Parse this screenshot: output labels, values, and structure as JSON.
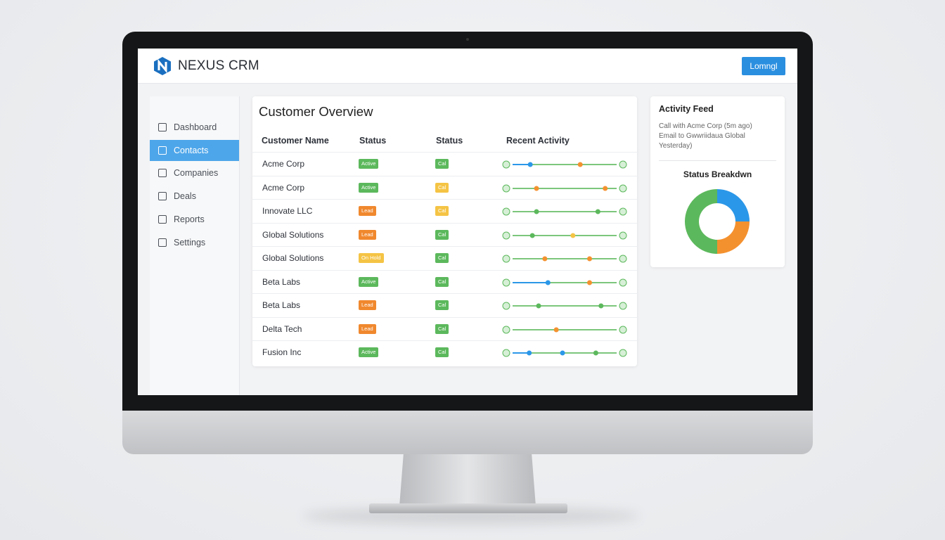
{
  "header": {
    "brand": "NEXUS CRM",
    "button": "Lomngl"
  },
  "sidebar": {
    "items": [
      "Dashboard",
      "Contacts",
      "Companies",
      "Deals",
      "Reports",
      "Settings"
    ],
    "active": 1
  },
  "customers": {
    "title": "Customer Overview",
    "headers": [
      "Customer Name",
      "Status",
      "Status",
      "Recent Activity"
    ],
    "rows": [
      {
        "name": "Acme Corp",
        "status": "Active",
        "status_color": "#5cb85c",
        "status2": "Cal",
        "status2_color": "#5cb85c"
      },
      {
        "name": "Acme Corp",
        "status": "Active",
        "status_color": "#5cb85c",
        "status2": "Cal",
        "status2_color": "#f5c445"
      },
      {
        "name": "Innovate LLC",
        "status": "Lead",
        "status_color": "#f0882e",
        "status2": "Cal",
        "status2_color": "#f5c445"
      },
      {
        "name": "Global Solutions",
        "status": "Lead",
        "status_color": "#f0882e",
        "status2": "Cal",
        "status2_color": "#5cb85c"
      },
      {
        "name": "Global Solutions",
        "status": "On Hold",
        "status_color": "#f5c445",
        "status2": "Cal",
        "status2_color": "#5cb85c"
      },
      {
        "name": "Beta Labs",
        "status": "Active",
        "status_color": "#5cb85c",
        "status2": "Cal",
        "status2_color": "#5cb85c"
      },
      {
        "name": "Beta Labs",
        "status": "Lead",
        "status_color": "#f0882e",
        "status2": "Cal",
        "status2_color": "#5cb85c"
      },
      {
        "name": "Delta Tech",
        "status": "Lead",
        "status_color": "#f0882e",
        "status2": "Cal",
        "status2_color": "#5cb85c"
      },
      {
        "name": "Fusion Inc",
        "status": "Active",
        "status_color": "#5cb85c",
        "status2": "Cal",
        "status2_color": "#5cb85c"
      }
    ]
  },
  "activity_feed": {
    "title": "Activity Feed",
    "lines": [
      "Call with Acme Corp (5m ago)",
      "Email to Gwwriidaua Global",
      "Yesterday)"
    ]
  },
  "status_breakdown": {
    "type": "pie",
    "title": "Status Breakdwn",
    "series": [
      {
        "color": "#2b97e8",
        "value": 25
      },
      {
        "color": "#f4912f",
        "value": 25
      },
      {
        "color": "#5cb85c",
        "value": 50
      }
    ]
  }
}
